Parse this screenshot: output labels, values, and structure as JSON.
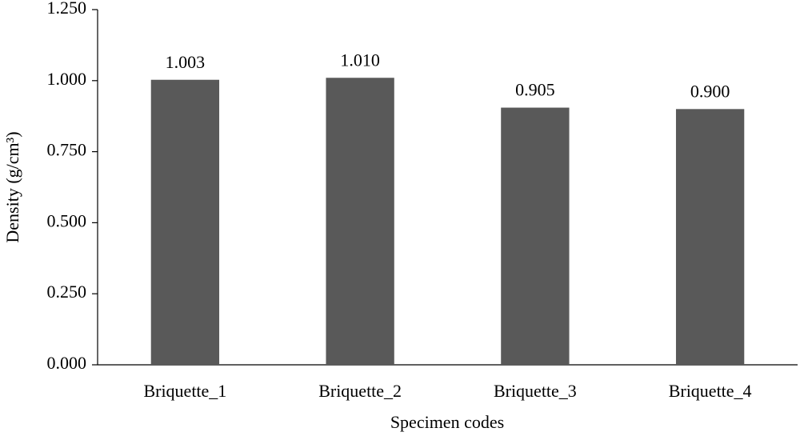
{
  "chart_data": {
    "type": "bar",
    "x_label": "Specimen codes",
    "y_label": "Density (g/cm³)",
    "categories": [
      "Briquette_1",
      "Briquette_2",
      "Briquette_3",
      "Briquette_4"
    ],
    "values": [
      1.003,
      1.01,
      0.905,
      0.9
    ],
    "value_labels": [
      "1.003",
      "1.010",
      "0.905",
      "0.900"
    ],
    "color": "#595959",
    "ylim": [
      0,
      1.25
    ],
    "yticks": [
      {
        "value": 0,
        "label": "0.000"
      },
      {
        "value": 0.25,
        "label": "0.250"
      },
      {
        "value": 0.5,
        "label": "0.500"
      },
      {
        "value": 0.75,
        "label": "0.750"
      },
      {
        "value": 1,
        "label": "1.000"
      },
      {
        "value": 1.25,
        "label": "1.250"
      }
    ],
    "grid": false
  }
}
